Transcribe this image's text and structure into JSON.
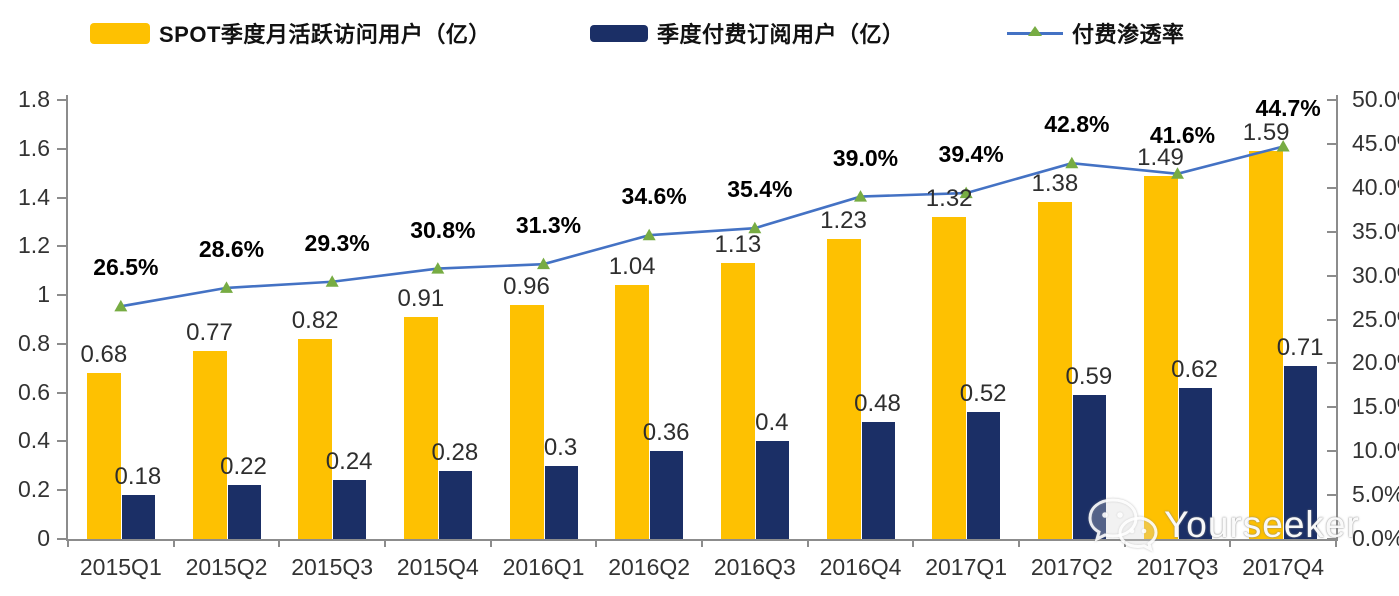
{
  "legend": {
    "items": [
      {
        "label": "SPOT季度月活跃访问用户（亿）",
        "swatch": "yellow-bar"
      },
      {
        "label": "季度付费订阅用户（亿）",
        "swatch": "navy-bar"
      },
      {
        "label": "付费渗透率",
        "swatch": "blue-line-green-triangle"
      }
    ]
  },
  "watermark": {
    "text": "Yourseeker",
    "icon": "wechat-icon"
  },
  "colors": {
    "mau_bar": "#FEC101",
    "subs_bar": "#1B2F66",
    "penetration_line": "#4472C4",
    "penetration_marker": "#77AC43",
    "axis": "#8C8C8C"
  },
  "chart_data": {
    "type": "bar",
    "title": "",
    "xlabel": "",
    "ylabel": "",
    "grid": false,
    "legend_position": "top",
    "categories": [
      "2015Q1",
      "2015Q2",
      "2015Q3",
      "2015Q4",
      "2016Q1",
      "2016Q2",
      "2016Q3",
      "2016Q4",
      "2017Q1",
      "2017Q2",
      "2017Q3",
      "2017Q4"
    ],
    "series": [
      {
        "name": "SPOT季度月活跃访问用户（亿）",
        "type": "bar",
        "axis": "left",
        "color": "#FEC101",
        "values": [
          0.68,
          0.77,
          0.82,
          0.91,
          0.96,
          1.04,
          1.13,
          1.23,
          1.32,
          1.38,
          1.49,
          1.59
        ],
        "labels": [
          "0.68",
          "0.77",
          "0.82",
          "0.91",
          "0.96",
          "1.04",
          "1.13",
          "1.23",
          "1.32",
          "1.38",
          "1.49",
          "1.59"
        ]
      },
      {
        "name": "季度付费订阅用户（亿）",
        "type": "bar",
        "axis": "left",
        "color": "#1B2F66",
        "values": [
          0.18,
          0.22,
          0.24,
          0.28,
          0.3,
          0.36,
          0.4,
          0.48,
          0.52,
          0.59,
          0.62,
          0.71
        ],
        "labels": [
          "0.18",
          "0.22",
          "0.24",
          "0.28",
          "0.3",
          "0.36",
          "0.4",
          "0.48",
          "0.52",
          "0.59",
          "0.62",
          "0.71"
        ]
      },
      {
        "name": "付费渗透率",
        "type": "line",
        "axis": "right",
        "color": "#4472C4",
        "marker": "triangle",
        "marker_color": "#77AC43",
        "values": [
          26.5,
          28.6,
          29.3,
          30.8,
          31.3,
          34.6,
          35.4,
          39.0,
          39.4,
          42.8,
          41.6,
          44.7
        ],
        "labels": [
          "26.5%",
          "28.6%",
          "29.3%",
          "30.8%",
          "31.3%",
          "34.6%",
          "35.4%",
          "39.0%",
          "39.4%",
          "42.8%",
          "41.6%",
          "44.7%"
        ]
      }
    ],
    "left_axis": {
      "min": 0,
      "max": 1.8,
      "step": 0.2,
      "tick_labels": [
        "0",
        "0.2",
        "0.4",
        "0.6",
        "0.8",
        "1",
        "1.2",
        "1.4",
        "1.6",
        "1.8"
      ]
    },
    "right_axis": {
      "min": 0,
      "max": 50,
      "step": 5,
      "suffix": "%",
      "tick_labels": [
        "0.0%",
        "5.0%",
        "10.0%",
        "15.0%",
        "20.0%",
        "25.0%",
        "30.0%",
        "35.0%",
        "40.0%",
        "45.0%",
        "50.0%"
      ]
    }
  }
}
